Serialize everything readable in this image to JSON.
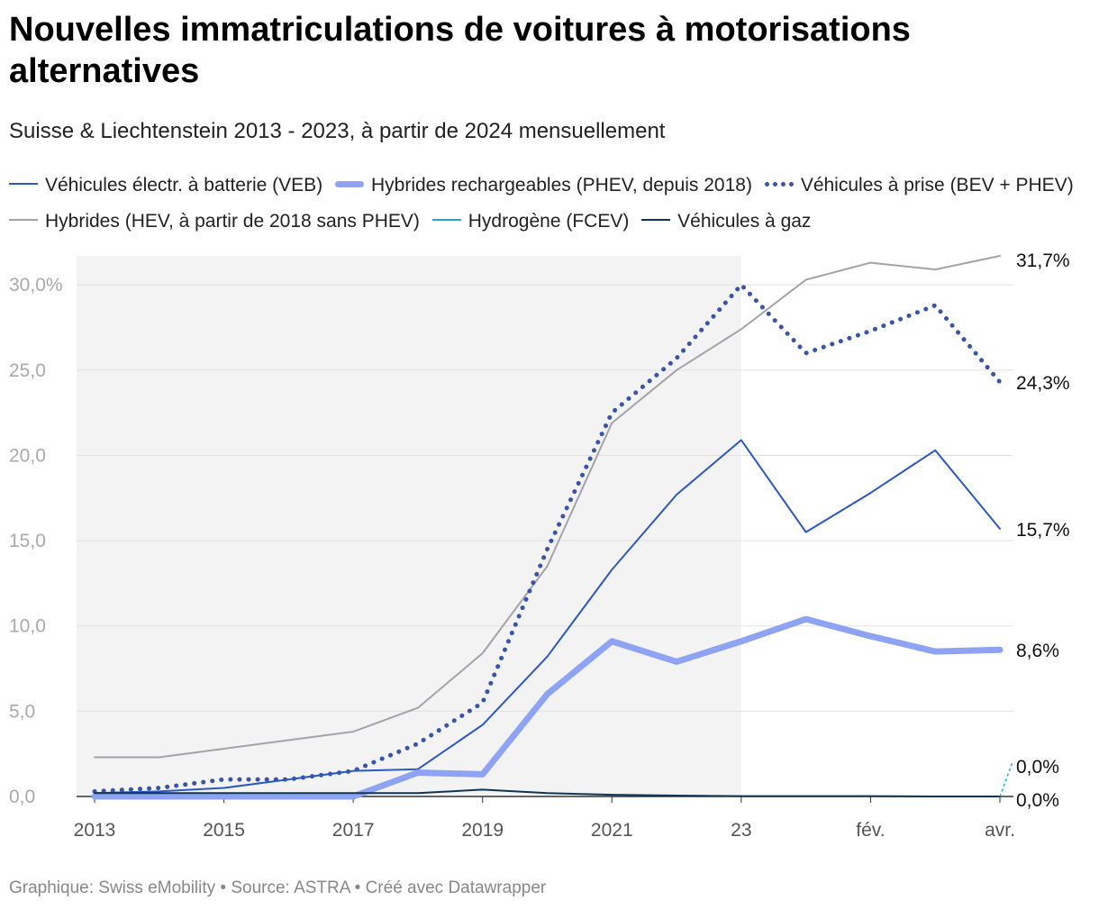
{
  "header": {
    "title": "Nouvelles immatriculations de voitures à motorisations alternatives",
    "subtitle": "Suisse & Liechtenstein 2013 - 2023, à partir de 2024 mensuellement"
  },
  "footer": {
    "text": "Graphique: Swiss eMobility • Source: ASTRA • Créé avec Datawrapper"
  },
  "legend": [
    {
      "label": "Véhicules électr. à batterie  (VEB)",
      "color": "#2c57c7",
      "style": "thin"
    },
    {
      "label": "Hybrides rechargeables (PHEV, depuis 2018)",
      "color": "#8fa3f5",
      "style": "thick"
    },
    {
      "label": "Véhicules à prise (BEV + PHEV)",
      "color": "#3a55a8",
      "style": "dotted"
    },
    {
      "label": "Hybrides (HEV, à partir de 2018 sans PHEV)",
      "color": "#a3a3ab",
      "style": "thin"
    },
    {
      "label": "Hydrogène (FCEV)",
      "color": "#28a8c8",
      "style": "thin"
    },
    {
      "label": "Véhicules à gaz",
      "color": "#0e3556",
      "style": "thin"
    }
  ],
  "chart_data": {
    "type": "line",
    "x_tick_labels": [
      "2013",
      "2015",
      "2017",
      "2019",
      "2021",
      "23",
      "fév.",
      "avr."
    ],
    "x": [
      "2013",
      "2014",
      "2015",
      "2016",
      "2017",
      "2018",
      "2019",
      "2020",
      "2021",
      "2022",
      "2023",
      "2024-01",
      "2024-02",
      "2024-03",
      "2024-04"
    ],
    "y_tick_labels": [
      "0,0",
      "5,0",
      "10,0",
      "15,0",
      "20,0",
      "25,0",
      "30,0%"
    ],
    "ylim": [
      0,
      31.7
    ],
    "y_ticks": [
      0,
      5,
      10,
      15,
      20,
      25,
      30
    ],
    "shaded_period": [
      "2013",
      "2023"
    ],
    "grid": true,
    "series": [
      {
        "name": "Hybrides (HEV, à partir de 2018 sans PHEV)",
        "color": "#a3a3ab",
        "style": "thin",
        "values": [
          2.3,
          2.3,
          2.8,
          3.3,
          3.8,
          5.2,
          8.4,
          13.5,
          21.9,
          25.0,
          27.4,
          30.3,
          31.3,
          30.9,
          31.7
        ],
        "end_label": "31,7%"
      },
      {
        "name": "Véhicules à prise (BEV + PHEV)",
        "color": "#3a55a8",
        "style": "dotted",
        "values": [
          0.3,
          0.5,
          1.0,
          1.0,
          1.5,
          3.1,
          5.5,
          14.5,
          22.5,
          25.7,
          30.0,
          26.0,
          27.3,
          28.8,
          24.3
        ],
        "end_label": "24,3%"
      },
      {
        "name": "Véhicules électr. à batterie  (VEB)",
        "color": "#2c57c7",
        "style": "thin",
        "values": [
          0.2,
          0.3,
          0.5,
          1.0,
          1.5,
          1.6,
          4.2,
          8.2,
          13.3,
          17.7,
          20.9,
          15.5,
          17.8,
          20.3,
          15.7
        ],
        "end_label": "15,7%"
      },
      {
        "name": "Hybrides rechargeables (PHEV, depuis 2018)",
        "color": "#8fa3f5",
        "style": "thick",
        "values": [
          0,
          0,
          0,
          0,
          0,
          1.4,
          1.3,
          6.0,
          9.1,
          7.9,
          9.1,
          10.4,
          9.4,
          8.5,
          8.6
        ],
        "end_label": "8,6%"
      },
      {
        "name": "Véhicules à gaz",
        "color": "#0e3556",
        "style": "thin",
        "values": [
          0.2,
          0.2,
          0.2,
          0.2,
          0.2,
          0.2,
          0.4,
          0.2,
          0.1,
          0.05,
          0.02,
          0.02,
          0.02,
          0.0,
          0.0
        ],
        "end_label": "0,0%"
      },
      {
        "name": "Hydrogène (FCEV)",
        "color": "#28a8c8",
        "style": "thin",
        "values": [
          null,
          null,
          null,
          null,
          null,
          null,
          null,
          null,
          null,
          null,
          null,
          null,
          null,
          null,
          0.0
        ],
        "end_label": "0,0%"
      }
    ]
  }
}
